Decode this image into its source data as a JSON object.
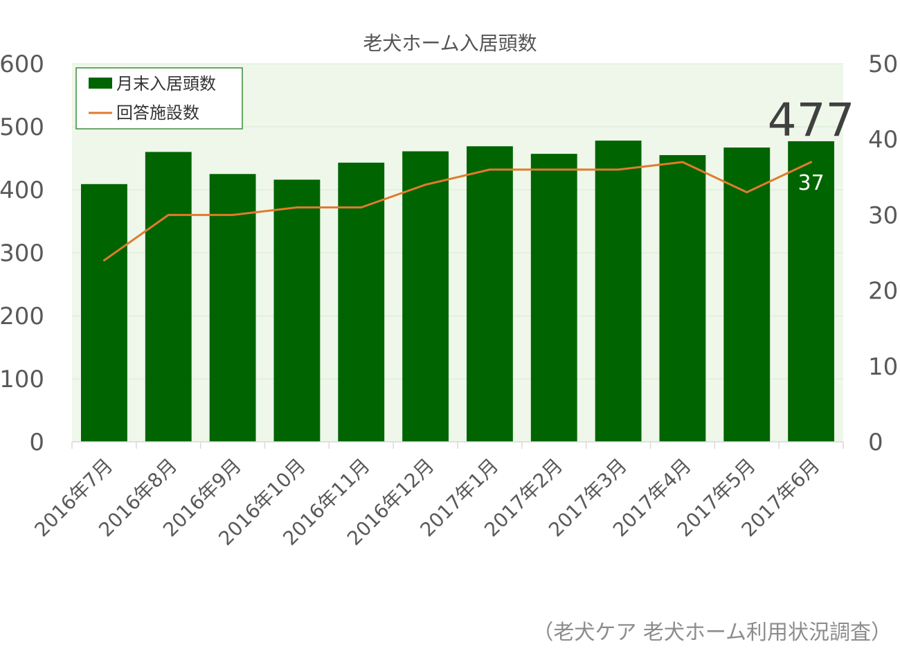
{
  "chart_data": {
    "type": "bar",
    "title": "老犬ホーム入居頭数",
    "categories": [
      "2016年7月",
      "2016年8月",
      "2016年9月",
      "2016年10月",
      "2016年11月",
      "2016年12月",
      "2017年1月",
      "2017年2月",
      "2017年3月",
      "2017年4月",
      "2017年5月",
      "2017年6月"
    ],
    "series": [
      {
        "name": "月末入居頭数",
        "type": "bar",
        "axis": "left",
        "color": "#006400",
        "values": [
          409,
          460,
          425,
          416,
          443,
          461,
          469,
          457,
          478,
          455,
          467,
          477
        ]
      },
      {
        "name": "回答施設数",
        "type": "line",
        "axis": "right",
        "color": "#e07b2c",
        "values": [
          24,
          30,
          30,
          31,
          31,
          34,
          36,
          36,
          36,
          37,
          33,
          37
        ]
      }
    ],
    "ylim_left": [
      0,
      600
    ],
    "yticks_left": [
      0,
      100,
      200,
      300,
      400,
      500,
      600
    ],
    "ylim_right": [
      0,
      50
    ],
    "yticks_right": [
      0,
      10,
      20,
      30,
      40,
      50
    ],
    "grid": true,
    "legend_position": "top-left",
    "plot_background": "#eef7ea",
    "annotations": {
      "last_bar_label": "477",
      "last_line_label": "37"
    }
  },
  "source_note": "（老犬ケア 老犬ホーム利用状況調査）"
}
